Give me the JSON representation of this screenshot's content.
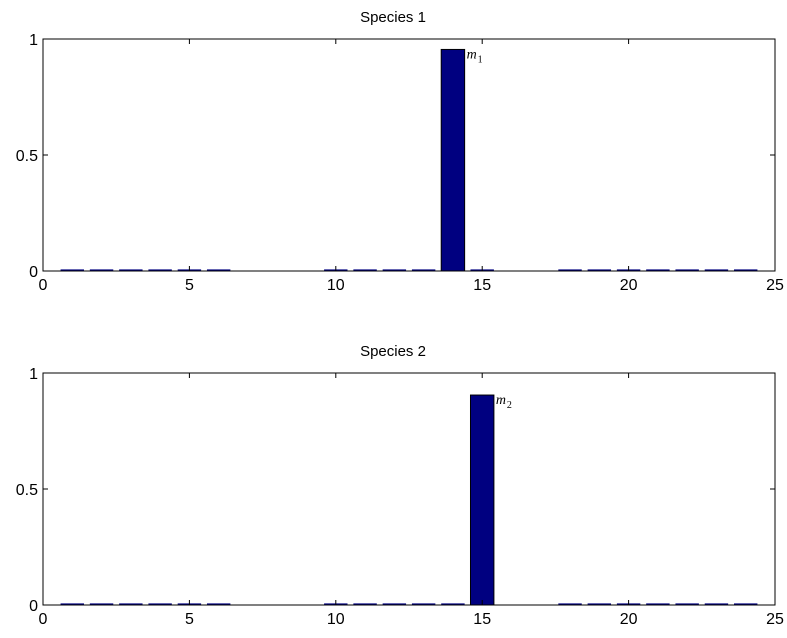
{
  "chart_data": [
    {
      "type": "bar",
      "title": "Species 1",
      "xlim": [
        0,
        25
      ],
      "ylim": [
        0,
        1
      ],
      "xticks": [
        0,
        5,
        10,
        15,
        20,
        25
      ],
      "yticks": [
        0,
        0.5,
        1
      ],
      "xtick_labels": [
        "0",
        "5",
        "10",
        "15",
        "20",
        "25"
      ],
      "ytick_labels": [
        "0",
        "0.5",
        "1"
      ],
      "x": [
        1,
        2,
        3,
        4,
        5,
        6,
        7,
        8,
        9,
        10,
        11,
        12,
        13,
        14,
        15,
        16,
        17,
        18,
        19,
        20,
        21,
        22,
        23,
        24
      ],
      "values": [
        0.005,
        0.005,
        0.005,
        0.005,
        0.005,
        0.005,
        0,
        0,
        0,
        0.005,
        0.005,
        0.005,
        0.005,
        0.955,
        0.005,
        0,
        0,
        0.005,
        0.005,
        0.005,
        0.005,
        0.005,
        0.005,
        0.005
      ],
      "bar_color": "#000080",
      "annotation": {
        "x": 14,
        "y": 0.955,
        "text": "m",
        "subscript": "1"
      }
    },
    {
      "type": "bar",
      "title": "Species 2",
      "xlim": [
        0,
        25
      ],
      "ylim": [
        0,
        1
      ],
      "xticks": [
        0,
        5,
        10,
        15,
        20,
        25
      ],
      "yticks": [
        0,
        0.5,
        1
      ],
      "xtick_labels": [
        "0",
        "5",
        "10",
        "15",
        "20",
        "25"
      ],
      "ytick_labels": [
        "0",
        "0.5",
        "1"
      ],
      "x": [
        1,
        2,
        3,
        4,
        5,
        6,
        7,
        8,
        9,
        10,
        11,
        12,
        13,
        14,
        15,
        16,
        17,
        18,
        19,
        20,
        21,
        22,
        23,
        24
      ],
      "values": [
        0.005,
        0.005,
        0.005,
        0.005,
        0.005,
        0.005,
        0,
        0,
        0,
        0.005,
        0.005,
        0.005,
        0.005,
        0.005,
        0.905,
        0,
        0,
        0.005,
        0.005,
        0.005,
        0.005,
        0.005,
        0.005,
        0.005
      ],
      "bar_color": "#000080",
      "annotation": {
        "x": 15,
        "y": 0.905,
        "text": "m",
        "subscript": "2"
      }
    }
  ]
}
